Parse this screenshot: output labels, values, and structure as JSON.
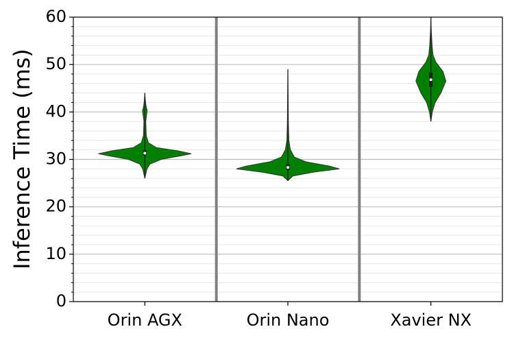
{
  "chart_data": {
    "type": "violin",
    "ylabel": "Inference Time (ms)",
    "categories": [
      "Orin AGX",
      "Orin Nano",
      "Xavier NX"
    ],
    "color": "#008000",
    "ylim": [
      0,
      60
    ],
    "yticks": [
      0,
      10,
      20,
      30,
      40,
      50,
      60
    ],
    "yticks_minor": [
      2,
      4,
      6,
      8,
      12,
      14,
      16,
      18,
      22,
      24,
      26,
      28,
      32,
      34,
      36,
      38,
      42,
      44,
      46,
      48,
      52,
      54,
      56,
      58
    ],
    "grid": true,
    "separators": true,
    "violins": [
      {
        "min": 26,
        "q1": 30.8,
        "median": 31.3,
        "q3": 31.9,
        "max": 44,
        "profile": {
          "y": [
            26,
            28,
            29,
            30,
            30.8,
            31.2,
            31.8,
            32.5,
            33.5,
            35,
            38,
            39.5,
            40.3,
            41,
            42,
            44
          ],
          "width": [
            0,
            0.03,
            0.07,
            0.23,
            0.52,
            0.65,
            0.46,
            0.16,
            0.05,
            0.02,
            0.013,
            0.026,
            0.033,
            0.02,
            0.01,
            0
          ]
        }
      },
      {
        "min": 25.5,
        "q1": 27.8,
        "median": 28.3,
        "q3": 29,
        "max": 49,
        "profile": {
          "y": [
            25.5,
            26.5,
            27.3,
            28,
            28.6,
            29.5,
            30.5,
            32,
            34,
            38,
            49
          ],
          "width": [
            0,
            0.07,
            0.36,
            0.72,
            0.58,
            0.25,
            0.09,
            0.036,
            0.014,
            0.007,
            0
          ]
        }
      },
      {
        "min": 38,
        "q1": 45.3,
        "median": 46.8,
        "q3": 48.3,
        "max": 60,
        "profile": {
          "y": [
            38,
            40,
            42,
            44,
            46.5,
            48.5,
            50.5,
            52,
            54,
            57,
            60
          ],
          "width": [
            0,
            0.02,
            0.06,
            0.14,
            0.21,
            0.17,
            0.07,
            0.03,
            0.017,
            0.006,
            0
          ]
        }
      }
    ]
  }
}
